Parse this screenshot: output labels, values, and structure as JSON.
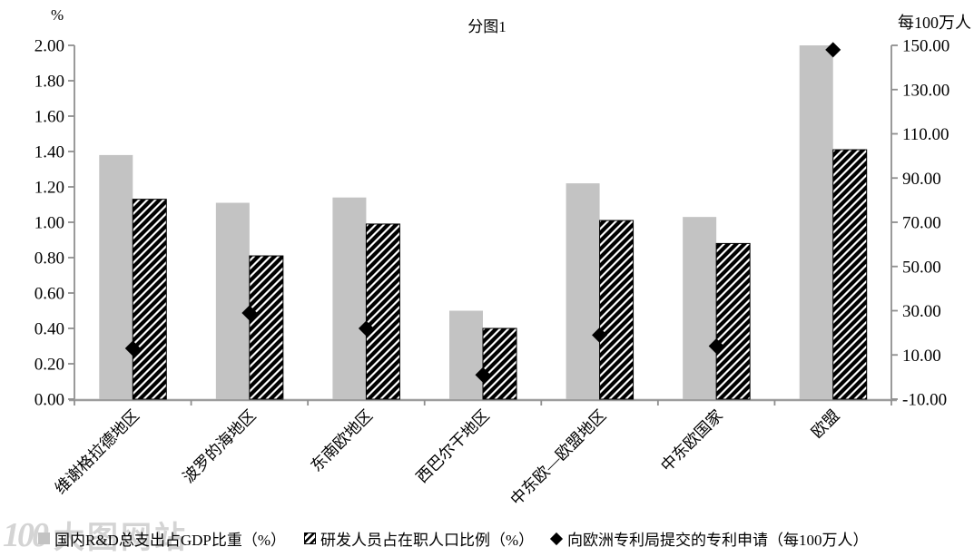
{
  "title": "分图1",
  "axes": {
    "left_unit": "%",
    "right_unit": "每100万人"
  },
  "legend": {
    "items": [
      {
        "label": "国内R&D总支出占GDP比重（%）",
        "marker": "gray-square"
      },
      {
        "label": "研发人员占在职人口比例（%）",
        "marker": "hatched-square"
      },
      {
        "label": "向欧洲专利局提交的专利申请（每100万人）",
        "marker": "black-diamond"
      }
    ]
  },
  "watermark": {
    "logo": "100",
    "text": "大图网站"
  },
  "colors": {
    "bar_gray": "#c3c3c3",
    "hatch_black": "#000000",
    "diamond_black": "#000000",
    "axis_gray": "#8f8f8f"
  },
  "chart_data": {
    "type": "bar",
    "title": "分图1",
    "categories": [
      "维谢格拉德地区",
      "波罗的海地区",
      "东南欧地区",
      "西巴尔干地区",
      "中东欧—欧盟地区",
      "中东欧国家",
      "欧盟"
    ],
    "series": [
      {
        "name": "国内R&D总支出占GDP比重（%）",
        "type": "bar",
        "style": "solid",
        "color": "#c3c3c3",
        "axis": "left",
        "values": [
          1.38,
          1.11,
          1.14,
          0.5,
          1.22,
          1.03,
          2.0
        ]
      },
      {
        "name": "研发人员占在职人口比例（%）",
        "type": "bar",
        "style": "hatch-diagonal",
        "color": "#000000",
        "axis": "left",
        "values": [
          1.13,
          0.81,
          0.99,
          0.4,
          1.01,
          0.88,
          1.41
        ]
      },
      {
        "name": "向欧洲专利局提交的专利申请（每100万人）",
        "type": "scatter",
        "marker": "diamond",
        "color": "#000000",
        "axis": "right",
        "values": [
          13,
          29,
          22,
          1,
          19,
          14,
          148
        ]
      }
    ],
    "left_axis": {
      "unit": "%",
      "min": 0,
      "max": 2,
      "step": 0.2,
      "decimals": 2
    },
    "right_axis": {
      "unit": "每100万人",
      "min": -10,
      "max": 150,
      "step": 20,
      "decimals": 2
    },
    "grid": false,
    "legend_position": "bottom"
  }
}
